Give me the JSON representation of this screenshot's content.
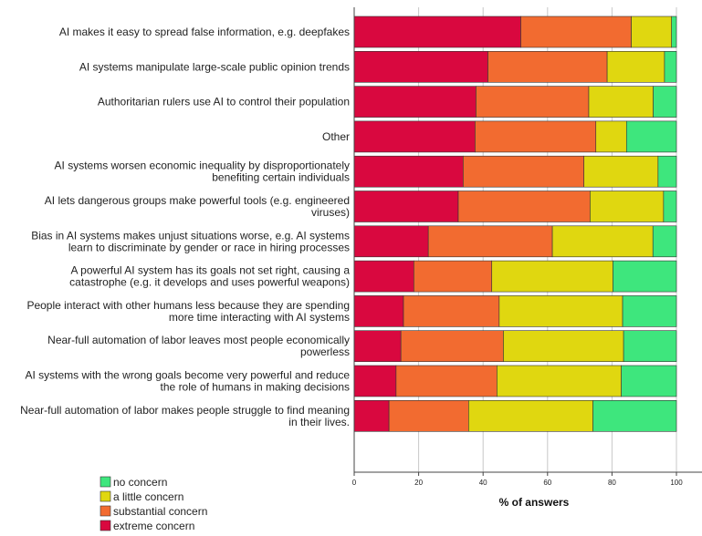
{
  "chart_data": {
    "type": "bar",
    "orientation": "horizontal",
    "stacked": true,
    "xlabel": "% of answers",
    "xlim": [
      0,
      100
    ],
    "xticks": [
      0,
      20,
      40,
      60,
      80,
      100
    ],
    "grid": "vertical",
    "legend_position": "bottom-left",
    "categories": [
      [
        "AI makes it easy to spread false information, e.g. deepfakes"
      ],
      [
        "AI systems manipulate large-scale public opinion trends"
      ],
      [
        "Authoritarian rulers use AI to control their population"
      ],
      [
        "Other"
      ],
      [
        "AI systems worsen economic inequality by disproportionately",
        "benefiting certain individuals"
      ],
      [
        "AI lets dangerous groups make powerful tools (e.g. engineered",
        "viruses)"
      ],
      [
        "Bias in AI systems makes unjust situations worse, e.g. AI systems",
        "learn to discriminate by gender or race in hiring processes"
      ],
      [
        "A powerful AI system has its goals not set right, causing a",
        "catastrophe (e.g. it develops and uses powerful weapons)"
      ],
      [
        "People interact with other humans less because they are spending",
        "more time interacting with AI systems"
      ],
      [
        "Near-full automation of labor leaves most people economically",
        "powerless"
      ],
      [
        "AI systems with the wrong goals become very powerful and reduce",
        "the role of humans in making decisions"
      ],
      [
        "Near-full automation of labor makes people struggle to find meaning",
        "in their lives."
      ]
    ],
    "series": [
      {
        "name": "extreme concern",
        "color": "#d9083f",
        "values": [
          51.7,
          41.5,
          37.8,
          37.5,
          33.8,
          32.3,
          23.0,
          18.5,
          15.3,
          14.5,
          13.0,
          10.8
        ]
      },
      {
        "name": "substantial concern",
        "color": "#f26b30",
        "values": [
          34.3,
          37.0,
          35.0,
          37.5,
          37.5,
          40.9,
          38.5,
          24.2,
          29.7,
          31.8,
          31.3,
          24.7
        ]
      },
      {
        "name": "a little concern",
        "color": "#e0d710",
        "values": [
          12.5,
          17.8,
          20.0,
          9.5,
          23.0,
          22.8,
          31.2,
          37.6,
          38.3,
          37.3,
          38.6,
          38.6
        ]
      },
      {
        "name": "no concern",
        "color": "#3ee67d",
        "values": [
          1.5,
          3.7,
          7.2,
          15.5,
          5.7,
          4.0,
          7.3,
          19.7,
          16.7,
          16.4,
          17.1,
          25.9
        ]
      }
    ],
    "legend_order": [
      {
        "name": "no concern",
        "color": "#3ee67d"
      },
      {
        "name": "a little concern",
        "color": "#e0d710"
      },
      {
        "name": "substantial concern",
        "color": "#f26b30"
      },
      {
        "name": "extreme concern",
        "color": "#d9083f"
      }
    ]
  }
}
